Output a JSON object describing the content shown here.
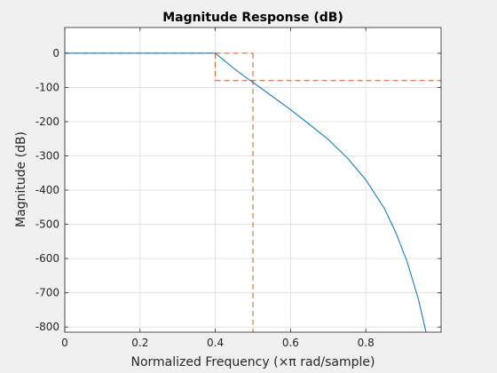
{
  "chart_data": {
    "type": "line",
    "title": "Magnitude Response (dB)",
    "xlabel": "Normalized Frequency (×π rad/sample)",
    "ylabel": "Magnitude (dB)",
    "xlim": [
      0,
      1
    ],
    "ylim": [
      -815,
      75
    ],
    "grid": true,
    "x_ticks": [
      0,
      0.2,
      0.4,
      0.6,
      0.8
    ],
    "x_tick_labels": [
      "0",
      "0.2",
      "0.4",
      "0.6",
      "0.8"
    ],
    "y_ticks": [
      0,
      -100,
      -200,
      -300,
      -400,
      -500,
      -600,
      -700,
      -800
    ],
    "y_tick_labels": [
      "0",
      "-100",
      "-200",
      "-300",
      "-400",
      "-500",
      "-600",
      "-700",
      "-800"
    ],
    "series": [
      {
        "color": "#0072BD",
        "x": [
          0,
          0.1,
          0.2,
          0.3,
          0.4,
          0.42,
          0.45,
          0.48,
          0.5,
          0.55,
          0.6,
          0.65,
          0.7,
          0.75,
          0.8,
          0.85,
          0.88,
          0.91,
          0.94,
          0.96
        ],
        "y": [
          0,
          0,
          0,
          0,
          0,
          -18,
          -45,
          -70,
          -85,
          -125,
          -165,
          -208,
          -252,
          -305,
          -370,
          -455,
          -525,
          -610,
          -720,
          -815
        ]
      }
    ],
    "spec_mask": {
      "color": "#D95319",
      "passband": {
        "x": [
          0,
          0.4
        ],
        "y": 0
      },
      "passband_edge": {
        "x": 0.4,
        "y": [
          0,
          -80
        ]
      },
      "stopband_edge": {
        "x": 0.5,
        "y": [
          0,
          -815
        ]
      },
      "stopband": {
        "x": [
          0.4,
          1
        ],
        "y": -80
      }
    }
  }
}
